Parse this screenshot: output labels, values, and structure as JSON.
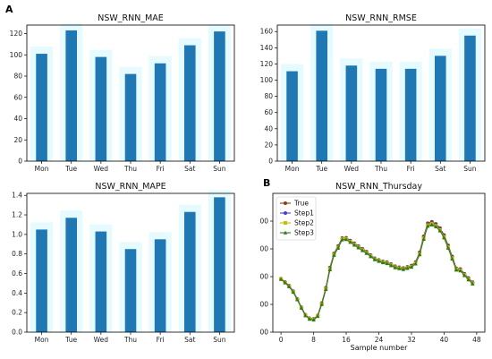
{
  "figure": {
    "panel_a_letter": "A",
    "panel_b_letter": "B"
  },
  "chart_data": [
    {
      "id": "mae",
      "type": "bar",
      "title": "NSW_RNN_MAE",
      "categories": [
        "Mon",
        "Tue",
        "Wed",
        "Thu",
        "Fri",
        "Sat",
        "Sun"
      ],
      "values": [
        101,
        123,
        98,
        82,
        92,
        109,
        122
      ],
      "ylim": [
        0,
        128
      ],
      "yticks": [
        0,
        20,
        40,
        60,
        80,
        100,
        120
      ],
      "bar_color": "#1f77b4",
      "shadow_color": "#e6fbff"
    },
    {
      "id": "rmse",
      "type": "bar",
      "title": "NSW_RNN_RMSE",
      "categories": [
        "Mon",
        "Tue",
        "Wed",
        "Thu",
        "Fri",
        "Sat",
        "Sun"
      ],
      "values": [
        111,
        161,
        118,
        114,
        114,
        130,
        155
      ],
      "ylim": [
        0,
        168
      ],
      "yticks": [
        0,
        20,
        40,
        60,
        80,
        100,
        120,
        140,
        160
      ],
      "bar_color": "#1f77b4",
      "shadow_color": "#e6fbff"
    },
    {
      "id": "mape",
      "type": "bar",
      "title": "NSW_RNN_MAPE",
      "categories": [
        "Mon",
        "Tue",
        "Wed",
        "Thu",
        "Fri",
        "Sat",
        "Sun"
      ],
      "values": [
        1.05,
        1.17,
        1.03,
        0.85,
        0.95,
        1.23,
        1.38
      ],
      "ylim": [
        0,
        1.42
      ],
      "yticks": [
        "0.0",
        "0.2",
        "0.4",
        "0.6",
        "0.8",
        "1.0",
        "1.2",
        "1.4"
      ],
      "bar_color": "#1f77b4",
      "shadow_color": "#e6fbff"
    },
    {
      "id": "thursday",
      "type": "line",
      "title": "NSW_RNN_Thursday",
      "xlabel": "Sample number",
      "xticks": [
        0,
        8,
        16,
        24,
        32,
        40,
        48
      ],
      "xlim": [
        -2,
        50
      ],
      "ylim": [
        0,
        1000
      ],
      "ytick_values": [
        0,
        200,
        400,
        600,
        800
      ],
      "ytick_labels": [
        "00",
        "00",
        "00",
        "00",
        "00"
      ],
      "legend": "top-left",
      "series": [
        {
          "name": "True",
          "color": "#8b3a1a",
          "marker": "circle",
          "x": [
            0,
            1,
            2,
            3,
            4,
            5,
            6,
            7,
            8,
            9,
            10,
            11,
            12,
            13,
            14,
            15,
            16,
            17,
            18,
            19,
            20,
            21,
            22,
            23,
            24,
            25,
            26,
            27,
            28,
            29,
            30,
            31,
            32,
            33,
            34,
            35,
            36,
            37,
            38,
            39,
            40,
            41,
            42,
            43,
            44,
            45,
            46,
            47
          ],
          "y": [
            385,
            362,
            335,
            295,
            240,
            180,
            125,
            100,
            95,
            120,
            210,
            320,
            465,
            567,
            620,
            678,
            680,
            660,
            640,
            620,
            600,
            580,
            555,
            532,
            520,
            510,
            505,
            490,
            475,
            468,
            462,
            470,
            480,
            505,
            575,
            690,
            785,
            795,
            780,
            750,
            700,
            625,
            545,
            460,
            455,
            420,
            390,
            360
          ]
        },
        {
          "name": "Step1",
          "color": "#4b3adb",
          "marker": "circle",
          "x": [
            0,
            1,
            2,
            3,
            4,
            5,
            6,
            7,
            8,
            9,
            10,
            11,
            12,
            13,
            14,
            15,
            16,
            17,
            18,
            19,
            20,
            21,
            22,
            23,
            24,
            25,
            26,
            27,
            28,
            29,
            30,
            31,
            32,
            33,
            34,
            35,
            36,
            37,
            38,
            39,
            40,
            41,
            42,
            43,
            44,
            45,
            46,
            47
          ],
          "y": [
            385,
            360,
            333,
            293,
            238,
            178,
            123,
            98,
            92,
            118,
            205,
            316,
            460,
            562,
            615,
            674,
            676,
            656,
            636,
            616,
            596,
            576,
            552,
            530,
            518,
            508,
            502,
            487,
            472,
            465,
            459,
            467,
            476,
            500,
            568,
            682,
            776,
            786,
            772,
            742,
            692,
            618,
            538,
            456,
            450,
            416,
            386,
            356
          ]
        },
        {
          "name": "Step2",
          "color": "#c8c000",
          "marker": "square",
          "x": [
            0,
            1,
            2,
            3,
            4,
            5,
            6,
            7,
            8,
            9,
            10,
            11,
            12,
            13,
            14,
            15,
            16,
            17,
            18,
            19,
            20,
            21,
            22,
            23,
            24,
            25,
            26,
            27,
            28,
            29,
            30,
            31,
            32,
            33,
            34,
            35,
            36,
            37,
            38,
            39,
            40,
            41,
            42,
            43,
            44,
            45,
            46,
            47
          ],
          "y": [
            383,
            358,
            330,
            290,
            236,
            176,
            121,
            96,
            90,
            116,
            202,
            312,
            455,
            558,
            610,
            670,
            672,
            652,
            632,
            612,
            592,
            572,
            548,
            526,
            514,
            504,
            498,
            483,
            468,
            461,
            455,
            463,
            472,
            496,
            563,
            676,
            770,
            780,
            766,
            736,
            686,
            612,
            533,
            452,
            446,
            412,
            382,
            352
          ]
        },
        {
          "name": "Step3",
          "color": "#2f7a1e",
          "marker": "triangle",
          "x": [
            0,
            1,
            2,
            3,
            4,
            5,
            6,
            7,
            8,
            9,
            10,
            11,
            12,
            13,
            14,
            15,
            16,
            17,
            18,
            19,
            20,
            21,
            22,
            23,
            24,
            25,
            26,
            27,
            28,
            29,
            30,
            31,
            32,
            33,
            34,
            35,
            36,
            37,
            38,
            39,
            40,
            41,
            42,
            43,
            44,
            45,
            46,
            47
          ],
          "y": [
            381,
            356,
            328,
            288,
            234,
            174,
            119,
            94,
            88,
            114,
            200,
            308,
            450,
            554,
            606,
            666,
            668,
            648,
            628,
            608,
            588,
            568,
            545,
            523,
            511,
            501,
            495,
            480,
            465,
            458,
            452,
            460,
            469,
            492,
            558,
            670,
            764,
            774,
            760,
            730,
            680,
            606,
            528,
            448,
            442,
            408,
            378,
            348
          ]
        }
      ]
    }
  ]
}
